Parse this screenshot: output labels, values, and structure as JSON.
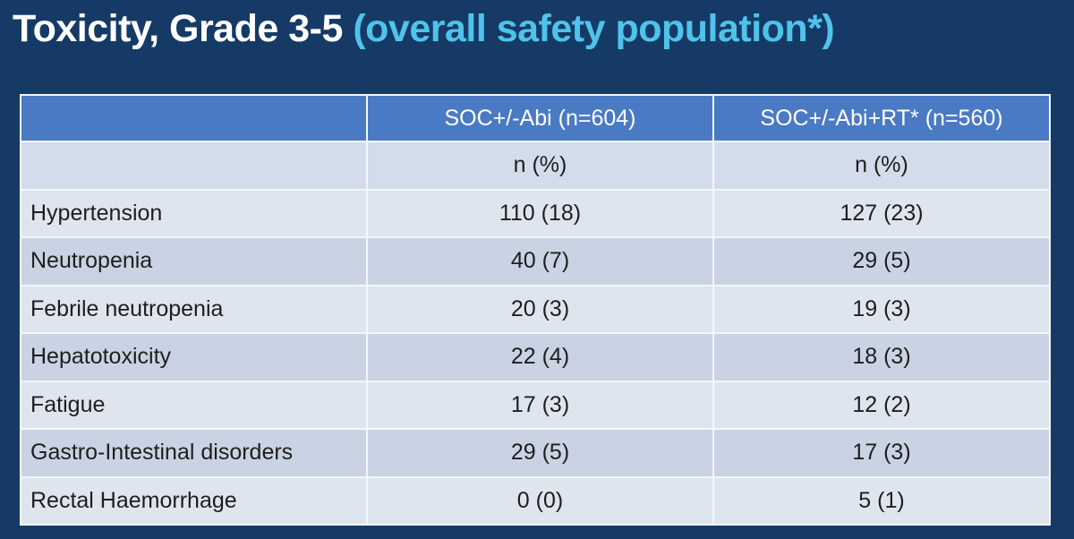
{
  "slide": {
    "title_main": "Toxicity, Grade 3-5",
    "title_sub": "(overall safety population*)"
  },
  "table": {
    "columns": [
      "",
      "SOC+/-Abi (n=604)",
      "SOC+/-Abi+RT* (n=560)"
    ],
    "units": [
      "",
      "n (%)",
      "n (%)"
    ],
    "rows": [
      {
        "label": "Hypertension",
        "soc": "110 (18)",
        "soc_rt": "127 (23)"
      },
      {
        "label": "Neutropenia",
        "soc": "40 (7)",
        "soc_rt": "29 (5)"
      },
      {
        "label": "Febrile neutropenia",
        "soc": "20 (3)",
        "soc_rt": "19 (3)"
      },
      {
        "label": "Hepatotoxicity",
        "soc": "22 (4)",
        "soc_rt": "18 (3)"
      },
      {
        "label": "Fatigue",
        "soc": "17 (3)",
        "soc_rt": "12 (2)"
      },
      {
        "label": "Gastro-Intestinal disorders",
        "soc": "29 (5)",
        "soc_rt": "17 (3)"
      },
      {
        "label": "Rectal Haemorrhage",
        "soc": "0 (0)",
        "soc_rt": "5 (1)"
      }
    ]
  },
  "colors": {
    "background": "#163a66",
    "title_main": "#ffffff",
    "title_sub": "#4fc3ea",
    "header_fill": "#4b7ac4"
  }
}
